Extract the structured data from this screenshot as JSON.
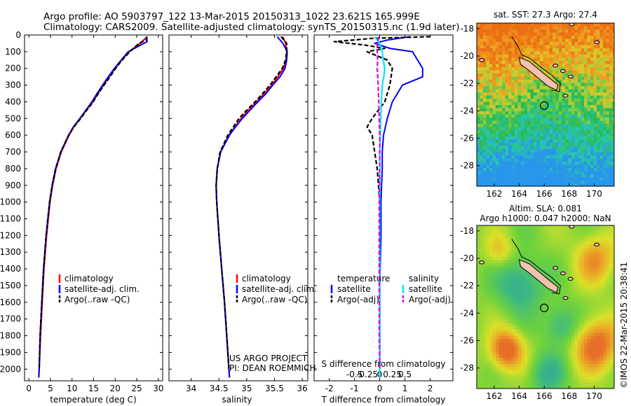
{
  "header": {
    "line1": "Argo profile: AO 5903797_122 13-Mar-2015 20150313_1022 23.621S 165.999E",
    "line2": "Climatology: CARS2009. Satellite-adjusted climatology: synTS_20150315.nc (1.9d later)"
  },
  "side_label": "©IMOS 22-Mar-2015 20:38:41",
  "project_credit": {
    "line1": "US ARGO PROJECT",
    "line2": "PI: DEAN ROEMMICH"
  },
  "colors": {
    "climatology": "#ff0000",
    "satellite": "#0000ff",
    "argo": "#000000",
    "sat_salinity": "#00e5ff",
    "argo_salinity": "#e000e0"
  },
  "chart_data": [
    {
      "type": "line",
      "id": "temperature",
      "xlabel": "temperature (deg C)",
      "xlim": [
        -1,
        31
      ],
      "xticks": [
        0,
        5,
        10,
        15,
        20,
        25,
        30
      ],
      "ylim": [
        2070,
        0
      ],
      "yticks": [
        0,
        100,
        200,
        300,
        400,
        500,
        600,
        700,
        800,
        900,
        1000,
        1100,
        1200,
        1300,
        1400,
        1500,
        1600,
        1700,
        1800,
        1900,
        2000
      ],
      "legend": {
        "placement": "lower-left",
        "entries": [
          "climatology",
          "satellite-adj. clim.",
          "Argo(..raw -QC)"
        ]
      },
      "series": [
        {
          "name": "climatology",
          "depth": [
            10,
            50,
            100,
            150,
            200,
            250,
            300,
            350,
            400,
            450,
            500,
            550,
            600,
            700,
            800,
            900,
            1000,
            1200,
            1400,
            1600,
            1800,
            2000,
            2050
          ],
          "values": [
            27.4,
            25.8,
            23.2,
            21.5,
            20.0,
            18.6,
            17.3,
            16.0,
            14.8,
            13.3,
            11.9,
            10.4,
            9.3,
            7.5,
            6.3,
            5.5,
            4.9,
            4.1,
            3.5,
            3.1,
            2.7,
            2.4,
            2.3
          ]
        },
        {
          "name": "satellite-adj. clim.",
          "depth": [
            10,
            40,
            100,
            150,
            200,
            250,
            300,
            350,
            400,
            450,
            500,
            550,
            600,
            700,
            800,
            900,
            1000,
            1200,
            1400,
            1600,
            1800,
            2000,
            2050
          ],
          "values": [
            27.3,
            27.4,
            23.0,
            21.4,
            19.8,
            18.4,
            17.1,
            15.8,
            14.6,
            13.2,
            11.8,
            10.3,
            9.2,
            7.4,
            6.2,
            5.4,
            4.8,
            4.0,
            3.4,
            3.0,
            2.6,
            2.4,
            2.3
          ]
        },
        {
          "name": "Argo(..raw -QC)",
          "depth": [
            10,
            30,
            50,
            100,
            150,
            200,
            250,
            300,
            350,
            400,
            450,
            500,
            550,
            600,
            700,
            800,
            900,
            1000,
            1200,
            1400,
            1600,
            1800,
            2000
          ],
          "values": [
            27.4,
            27.2,
            25.5,
            23.4,
            21.6,
            20.1,
            18.8,
            17.4,
            16.1,
            14.9,
            13.4,
            12.0,
            10.4,
            9.2,
            7.4,
            6.2,
            5.4,
            4.8,
            4.0,
            3.4,
            3.0,
            2.6,
            2.4
          ]
        }
      ]
    },
    {
      "type": "line",
      "id": "salinity",
      "xlabel": "salinity",
      "xlim": [
        33.6,
        36.1
      ],
      "xticks": [
        34,
        34.5,
        35,
        35.5,
        36
      ],
      "xticklabels": [
        "34",
        "34.5",
        "35",
        "35.5",
        "36"
      ],
      "ylim": [
        2070,
        0
      ],
      "legend": {
        "placement": "lower-left",
        "entries": [
          "climatology",
          "satellite-adj. clim.",
          "Argo(..raw -QC)"
        ]
      },
      "series": [
        {
          "name": "climatology",
          "depth": [
            10,
            50,
            100,
            150,
            200,
            250,
            300,
            350,
            400,
            450,
            500,
            550,
            600,
            700,
            800,
            900,
            1000,
            1200,
            1400,
            1600,
            1800,
            2000,
            2050
          ],
          "values": [
            35.65,
            35.7,
            35.72,
            35.71,
            35.66,
            35.56,
            35.45,
            35.32,
            35.18,
            35.03,
            34.9,
            34.79,
            34.68,
            34.53,
            34.47,
            34.45,
            34.46,
            34.5,
            34.55,
            34.6,
            34.64,
            34.68,
            34.69
          ]
        },
        {
          "name": "satellite-adj. clim.",
          "depth": [
            10,
            50,
            100,
            150,
            200,
            250,
            300,
            350,
            400,
            450,
            500,
            550,
            600,
            700,
            800,
            900,
            1000,
            1200,
            1400,
            1600,
            1800,
            2000,
            2050
          ],
          "values": [
            35.55,
            35.65,
            35.73,
            35.72,
            35.69,
            35.6,
            35.47,
            35.35,
            35.2,
            35.06,
            34.92,
            34.8,
            34.69,
            34.53,
            34.47,
            34.45,
            34.46,
            34.5,
            34.55,
            34.6,
            34.64,
            34.68,
            34.69
          ]
        },
        {
          "name": "Argo(..raw -QC)",
          "depth": [
            10,
            50,
            100,
            150,
            200,
            250,
            300,
            350,
            400,
            450,
            500,
            550,
            600,
            700,
            800,
            900,
            1000,
            1200,
            1400,
            1600,
            1800,
            2000
          ],
          "values": [
            35.62,
            35.72,
            35.72,
            35.7,
            35.64,
            35.53,
            35.42,
            35.29,
            35.15,
            35.0,
            34.86,
            34.76,
            34.66,
            34.52,
            34.47,
            34.45,
            34.46,
            34.5,
            34.55,
            34.6,
            34.64,
            34.68
          ]
        }
      ]
    },
    {
      "type": "line",
      "id": "differences",
      "xlabel": "T difference from climatology",
      "xlabel_top": "S difference from climatology",
      "xlim": [
        -2.6,
        2.9
      ],
      "xticks": [
        -2,
        -1,
        0,
        1,
        2
      ],
      "xticks_top": [
        -0.5,
        -0.25,
        0,
        0.25,
        0.5
      ],
      "xticklabels_top": [
        "-0.5",
        "-0.25",
        "0",
        "0.25",
        "0.5"
      ],
      "ylim": [
        2070,
        0
      ],
      "legend": {
        "placement": "lower-center",
        "temperature_title": "temperature",
        "salinity_title": "salinity",
        "entries": [
          "satellite",
          "Argo(-adj)",
          "satellite",
          "Argo(-adj)"
        ]
      },
      "series": [
        {
          "name": "satellite",
          "group": "temperature",
          "depth": [
            10,
            30,
            50,
            80,
            100,
            150,
            200,
            250,
            300,
            400,
            500,
            600,
            700,
            800,
            1000,
            1200,
            1500,
            2000,
            2050
          ],
          "values": [
            1.2,
            0.3,
            -0.2,
            0.4,
            1.3,
            1.5,
            1.7,
            1.7,
            0.9,
            0.5,
            0.3,
            0.15,
            0.1,
            0.1,
            0.05,
            0.05,
            0.0,
            0.0,
            0.0
          ]
        },
        {
          "name": "Argo(-adj)",
          "group": "temperature",
          "depth": [
            10,
            20,
            40,
            60,
            80,
            100,
            150,
            200,
            300,
            400,
            500,
            550,
            600,
            700,
            800,
            1000,
            1200,
            1500,
            1800,
            2000
          ],
          "values": [
            2.0,
            -0.3,
            -1.8,
            -0.6,
            0.2,
            -0.5,
            0.3,
            0.5,
            0.4,
            0.2,
            -0.3,
            -0.5,
            -0.3,
            -0.2,
            -0.1,
            0.0,
            0.0,
            0.0,
            0.0,
            0.0
          ]
        },
        {
          "name": "satellite",
          "group": "salinity",
          "depth": [
            10,
            30,
            50,
            100,
            150,
            200,
            250,
            300,
            400,
            500,
            600,
            700,
            800,
            1000,
            1500,
            2000,
            2050
          ],
          "values": [
            -0.1,
            -0.05,
            0.0,
            0.05,
            0.07,
            0.1,
            0.08,
            0.05,
            0.03,
            0.02,
            0.01,
            0.0,
            0.0,
            0.0,
            0.0,
            0.0,
            0.0
          ]
        },
        {
          "name": "Argo(-adj)",
          "group": "salinity",
          "depth": [
            10,
            30,
            50,
            100,
            150,
            200,
            300,
            400,
            500,
            600,
            700,
            800,
            1000,
            1200,
            1500,
            1800,
            2000
          ],
          "values": [
            -0.02,
            -0.03,
            -0.05,
            -0.05,
            -0.04,
            -0.05,
            -0.03,
            -0.02,
            -0.01,
            0.0,
            0.0,
            0.0,
            -0.01,
            -0.01,
            -0.01,
            -0.01,
            0.0
          ]
        }
      ]
    },
    {
      "type": "heatmap",
      "id": "sst_map",
      "title": "sat. SST: 27.3 Argo: 27.4",
      "xticks": [
        162,
        164,
        166,
        168,
        170
      ],
      "yticks": [
        -18,
        -20,
        -22,
        -24,
        -26,
        -28
      ],
      "xlim": [
        160.6,
        171.6
      ],
      "ylim": [
        -29.5,
        -17.6
      ],
      "marker": {
        "lon": 166.0,
        "lat": -23.62
      }
    },
    {
      "type": "heatmap",
      "id": "sla_map",
      "title_line1": "Altim. SLA: 0.081",
      "title_line2": "Argo h1000: 0.047 h2000: NaN",
      "xticks": [
        162,
        164,
        166,
        168,
        170
      ],
      "yticks": [
        -18,
        -20,
        -22,
        -24,
        -26,
        -28
      ],
      "xlim": [
        160.6,
        171.6
      ],
      "ylim": [
        -29.5,
        -17.6
      ],
      "marker": {
        "lon": 166.0,
        "lat": -23.62
      }
    }
  ]
}
